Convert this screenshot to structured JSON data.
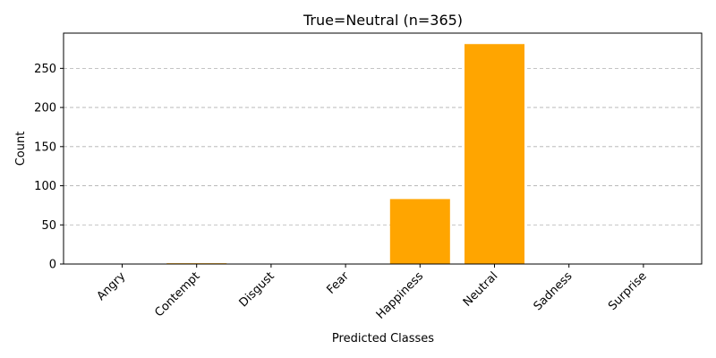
{
  "chart_data": {
    "type": "bar",
    "title": "True=Neutral  (n=365)",
    "xlabel": "Predicted Classes",
    "ylabel": "Count",
    "categories": [
      "Angry",
      "Contempt",
      "Disgust",
      "Fear",
      "Happiness",
      "Neutral",
      "Sadness",
      "Surprise"
    ],
    "values": [
      0,
      1,
      0,
      0,
      83,
      281,
      0,
      0
    ],
    "ylim": [
      0,
      295
    ],
    "yticks": [
      0,
      50,
      100,
      150,
      200,
      250
    ],
    "grid": "y-dashed",
    "bar_color": "#FFA500",
    "tick_rotation": 45
  }
}
